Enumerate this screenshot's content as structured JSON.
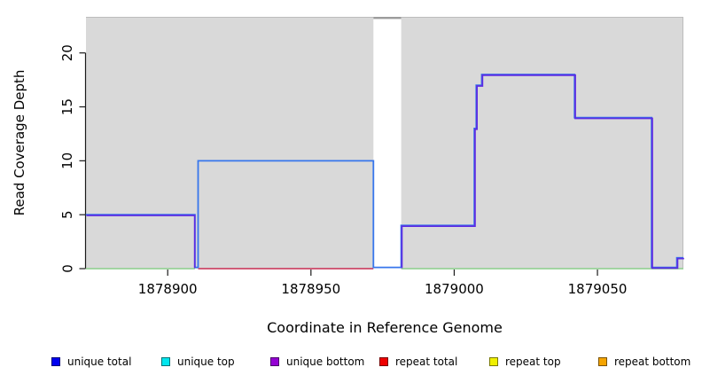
{
  "chart_data": {
    "type": "line",
    "subtype": "step-coverage",
    "title": "",
    "xlabel": "Coordinate in Reference Genome",
    "ylabel": "Read Coverage Depth",
    "xlim": [
      1878871.4,
      1879080
    ],
    "ylim": [
      0,
      23.3
    ],
    "x_ticks": [
      1878900,
      1878950,
      1879000,
      1879050
    ],
    "y_ticks": [
      0,
      5,
      10,
      15,
      20
    ],
    "grid": false,
    "plot_background": "#d9d9d9",
    "plot_edge_color": "#bcbcbc",
    "highlight_region": {
      "x0": 1878971.8,
      "x1": 1878981.5,
      "color": "#ffffff",
      "top_cap_color": "#9c9c9c",
      "note": "white vertical band with clipped gray segment at plot top"
    },
    "series": [
      {
        "id": "zero_baseline_left",
        "name": "zero coverage baseline (left, appears light green)",
        "color": "#97d097",
        "points": [
          [
            1878871.4,
            0
          ],
          [
            1878909.5,
            0
          ]
        ]
      },
      {
        "id": "zero_baseline_right",
        "name": "zero coverage baseline (right, appears light green)",
        "color": "#97d097",
        "points": [
          [
            1878981.5,
            0
          ],
          [
            1879080,
            0
          ]
        ]
      },
      {
        "id": "repeat_total",
        "name": "repeat total (zero through unique span, appears crimson)",
        "color": "#cc4868",
        "points": [
          [
            1878910.6,
            0
          ],
          [
            1878971.8,
            0
          ]
        ]
      },
      {
        "id": "unique_total",
        "name": "unique total",
        "color": "#3776ec",
        "points": [
          [
            1878871.4,
            5
          ],
          [
            1878909.5,
            5
          ],
          [
            1878909.5,
            0
          ],
          [
            1878910.6,
            0
          ],
          [
            1878910.6,
            10
          ],
          [
            1878971.8,
            10
          ],
          [
            1878971.8,
            0
          ],
          [
            1878981.5,
            0
          ],
          [
            1878981.5,
            4
          ],
          [
            1879007.0,
            4
          ],
          [
            1879007.0,
            13
          ],
          [
            1879007.7,
            13
          ],
          [
            1879007.7,
            17
          ],
          [
            1879009.6,
            17
          ],
          [
            1879009.6,
            18
          ],
          [
            1879042.0,
            18
          ],
          [
            1879042.0,
            14
          ],
          [
            1879068.9,
            14
          ],
          [
            1879068.9,
            0
          ],
          [
            1879077.7,
            0
          ],
          [
            1879077.7,
            1
          ],
          [
            1879080,
            1
          ]
        ]
      },
      {
        "id": "unique_bottom",
        "name": "unique bottom",
        "color": "#5c2ce2",
        "paths": [
          [
            [
              1878871.4,
              5
            ],
            [
              1878909.2,
              5
            ],
            [
              1878909.2,
              0
            ]
          ],
          [
            [
              1878981.5,
              0
            ],
            [
              1878981.5,
              4
            ],
            [
              1879007.0,
              4
            ],
            [
              1879007.0,
              13
            ],
            [
              1879007.7,
              13
            ],
            [
              1879007.7,
              17
            ],
            [
              1879009.6,
              17
            ],
            [
              1879009.6,
              18
            ],
            [
              1879042.0,
              18
            ],
            [
              1879042.0,
              14
            ],
            [
              1879068.9,
              14
            ],
            [
              1879068.9,
              0
            ],
            [
              1879077.7,
              0
            ],
            [
              1879077.7,
              1
            ],
            [
              1879080,
              1
            ]
          ]
        ]
      }
    ]
  },
  "legend": {
    "items": [
      {
        "label": "unique total",
        "color": "#0000f0"
      },
      {
        "label": "unique top",
        "color": "#00e6ee"
      },
      {
        "label": "unique bottom",
        "color": "#9400d3"
      },
      {
        "label": "repeat total",
        "color": "#ee0000"
      },
      {
        "label": "repeat top",
        "color": "#f0f000"
      },
      {
        "label": "repeat bottom",
        "color": "#f5a400"
      }
    ]
  }
}
